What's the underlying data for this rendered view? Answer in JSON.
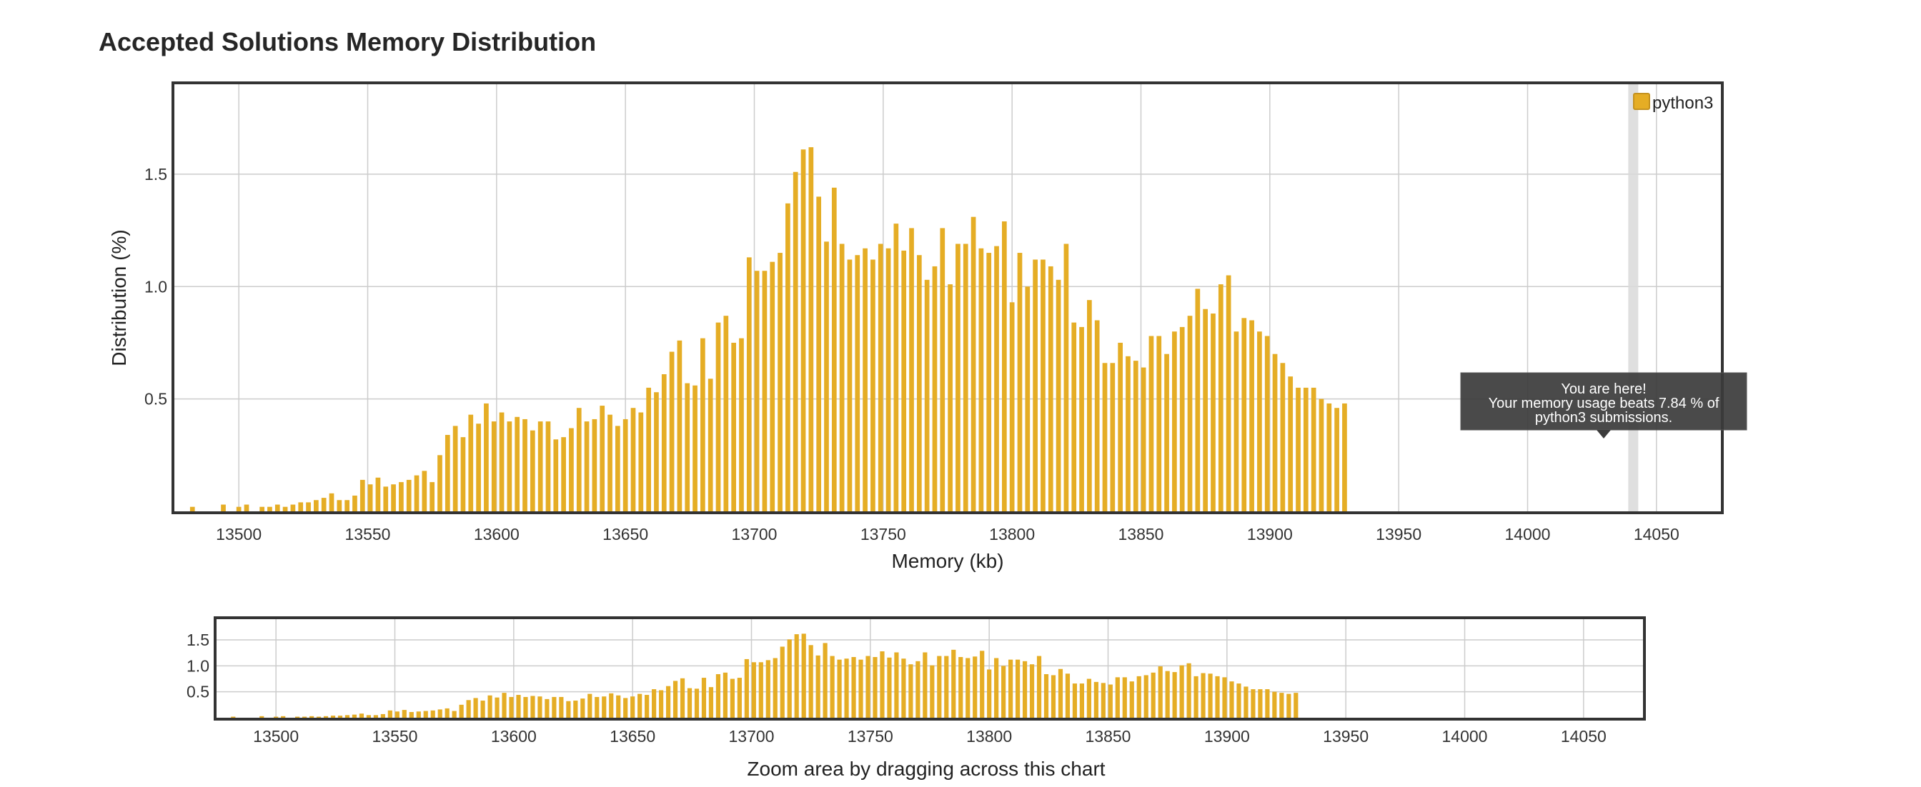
{
  "page": {
    "title": "Accepted Solutions Memory Distribution"
  },
  "chart_data": [
    {
      "type": "bar",
      "xlabel": "Memory (kb)",
      "ylabel": "Distribution (%)",
      "xlim": [
        13475,
        14075
      ],
      "ylim": [
        0,
        1.9
      ],
      "x_ticks": [
        13500,
        13550,
        13600,
        13650,
        13700,
        13750,
        13800,
        13850,
        13900,
        13950,
        14000,
        14050
      ],
      "y_ticks": [
        0.5,
        1.0,
        1.5
      ],
      "y_tick_labels": [
        "0.5",
        "1.0",
        "1.5"
      ],
      "grid": true,
      "legend_position": "top-right",
      "series": [
        {
          "name": "python3",
          "color": "#e5ad25",
          "x_start": 13482,
          "x_step": 3,
          "values": [
            0.02,
            0,
            0,
            0,
            0.03,
            0,
            0.02,
            0.03,
            0,
            0.02,
            0.02,
            0.03,
            0.02,
            0.03,
            0.04,
            0.04,
            0.05,
            0.06,
            0.08,
            0.05,
            0.05,
            0.07,
            0.14,
            0.12,
            0.15,
            0.11,
            0.12,
            0.13,
            0.14,
            0.16,
            0.18,
            0.13,
            0.25,
            0.34,
            0.38,
            0.33,
            0.43,
            0.39,
            0.48,
            0.4,
            0.44,
            0.4,
            0.42,
            0.41,
            0.36,
            0.4,
            0.4,
            0.32,
            0.33,
            0.37,
            0.46,
            0.4,
            0.41,
            0.47,
            0.43,
            0.38,
            0.41,
            0.46,
            0.44,
            0.55,
            0.53,
            0.61,
            0.71,
            0.76,
            0.57,
            0.56,
            0.77,
            0.59,
            0.84,
            0.87,
            0.75,
            0.77,
            1.13,
            1.07,
            1.07,
            1.11,
            1.15,
            1.37,
            1.51,
            1.61,
            1.62,
            1.4,
            1.2,
            1.44,
            1.19,
            1.12,
            1.14,
            1.17,
            1.12,
            1.19,
            1.17,
            1.28,
            1.16,
            1.26,
            1.14,
            1.03,
            1.09,
            1.26,
            1.01,
            1.19,
            1.19,
            1.31,
            1.17,
            1.15,
            1.18,
            1.29,
            0.93,
            1.15,
            1.0,
            1.12,
            1.12,
            1.09,
            1.03,
            1.19,
            0.84,
            0.82,
            0.94,
            0.85,
            0.66,
            0.66,
            0.75,
            0.69,
            0.67,
            0.64,
            0.78,
            0.78,
            0.7,
            0.8,
            0.82,
            0.87,
            0.99,
            0.9,
            0.88,
            1.01,
            1.05,
            0.8,
            0.86,
            0.85,
            0.8,
            0.78,
            0.7,
            0.66,
            0.6,
            0.55,
            0.55,
            0.55,
            0.5,
            0.48,
            0.46,
            0.48
          ]
        }
      ],
      "tooltip": {
        "line1": "You are here!",
        "line2": "Your memory usage beats 7.84 % of",
        "line3": "python3 submissions.",
        "x": 14041
      }
    },
    {
      "type": "bar",
      "role": "navigator",
      "caption": "Zoom area by dragging across this chart",
      "xlim": [
        13475,
        14075
      ],
      "ylim": [
        0,
        1.9
      ],
      "x_ticks": [
        13500,
        13550,
        13600,
        13650,
        13700,
        13750,
        13800,
        13850,
        13900,
        13950,
        14000,
        14050
      ],
      "y_ticks": [
        0.5,
        1.0,
        1.5
      ],
      "y_tick_labels": [
        "0.5",
        "1.0",
        "1.5"
      ]
    }
  ]
}
